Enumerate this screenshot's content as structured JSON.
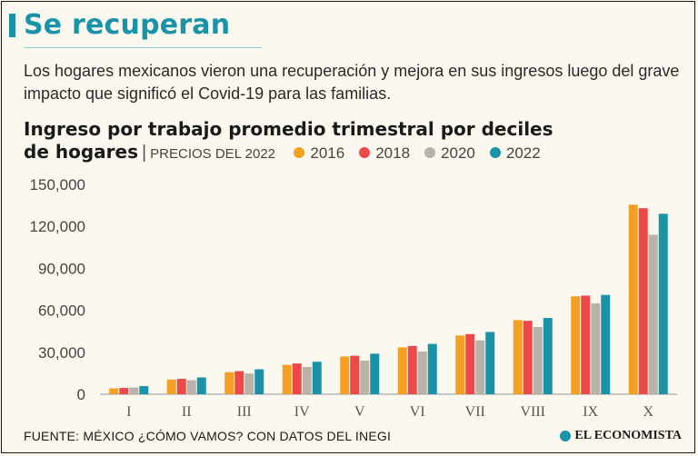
{
  "header": {
    "title": "Se recuperan",
    "subtitle": "Los hogares mexicanos vieron una recuperación y mejora en sus ingresos luego del grave impacto que significó el Covid-19 para las familias."
  },
  "colors": {
    "accent": "#1a93a8"
  },
  "chart_data": {
    "type": "bar",
    "title_line1": "Ingreso por trabajo promedio trimestral por deciles",
    "title_line2": "de hogares",
    "separator": "|",
    "subtitle": "PRECIOS DEL 2022",
    "categories": [
      "I",
      "II",
      "III",
      "IV",
      "V",
      "VI",
      "VII",
      "VIII",
      "IX",
      "X"
    ],
    "series": [
      {
        "name": "2016",
        "color": "#f5a023",
        "values": [
          4200,
          10500,
          15800,
          21000,
          27000,
          33500,
          42000,
          53000,
          70000,
          135500
        ]
      },
      {
        "name": "2018",
        "color": "#ec4a4a",
        "values": [
          4500,
          11000,
          16500,
          22000,
          27500,
          34500,
          43000,
          52500,
          70500,
          133000
        ]
      },
      {
        "name": "2020",
        "color": "#b8b2a8",
        "values": [
          4800,
          10000,
          14800,
          19500,
          24000,
          30500,
          38500,
          48000,
          65000,
          114000
        ]
      },
      {
        "name": "2022",
        "color": "#1a93a8",
        "values": [
          5800,
          12000,
          17800,
          23200,
          29000,
          36000,
          44500,
          54500,
          71000,
          129000
        ]
      }
    ],
    "yticks": [
      "0",
      "30,000",
      "60,000",
      "90,000",
      "120,000",
      "150,000"
    ],
    "ytick_values": [
      0,
      30000,
      60000,
      90000,
      120000,
      150000
    ],
    "ylim": [
      0,
      150000
    ],
    "xlabel": "",
    "ylabel": ""
  },
  "footer": {
    "source": "FUENTE: MÉXICO ¿CÓMO VAMOS? CON DATOS DEL INEGI",
    "brand": "EL ECONOMISTA"
  }
}
